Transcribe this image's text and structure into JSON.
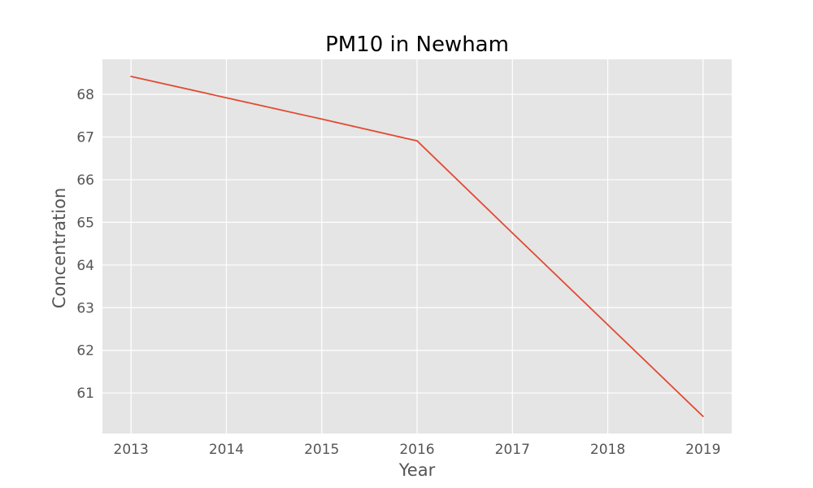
{
  "chart_data": {
    "type": "line",
    "title": "PM10 in Newham",
    "xlabel": "Year",
    "ylabel": "Concentration",
    "x": [
      2013,
      2014,
      2015,
      2016,
      2017,
      2018,
      2019
    ],
    "series": [
      {
        "values": [
          68.42,
          67.92,
          67.42,
          66.91,
          64.75,
          62.6,
          60.45
        ],
        "color": "#E24A33"
      }
    ],
    "x_ticks": [
      "2013",
      "2014",
      "2015",
      "2016",
      "2017",
      "2018",
      "2019"
    ],
    "y_ticks": [
      "61",
      "62",
      "63",
      "64",
      "65",
      "66",
      "67",
      "68"
    ],
    "xlim": [
      2012.7,
      2019.3
    ],
    "ylim": [
      60.05,
      68.82
    ],
    "grid": true,
    "legend": "none",
    "background_color": "#E5E5E5",
    "grid_color": "#FFFFFF"
  }
}
